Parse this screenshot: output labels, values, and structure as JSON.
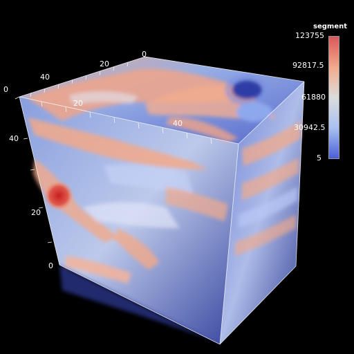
{
  "scene": {
    "background": "#000000",
    "colormap": [
      "#3b4cc0",
      "#7396f5",
      "#b0cbfc",
      "#dcdddd",
      "#f6bfa6",
      "#ea7b60",
      "#b40426"
    ],
    "axis_ticks": {
      "top_x": [
        "0",
        "20",
        "40"
      ],
      "front_x": [
        "20",
        "40"
      ],
      "left_y": [
        "0",
        "20",
        "40"
      ],
      "top_z": [
        "0"
      ]
    }
  },
  "colorbar": {
    "title": "segment",
    "labels": [
      "123755",
      "92817.5",
      "61880",
      "30942.5",
      "5"
    ]
  }
}
